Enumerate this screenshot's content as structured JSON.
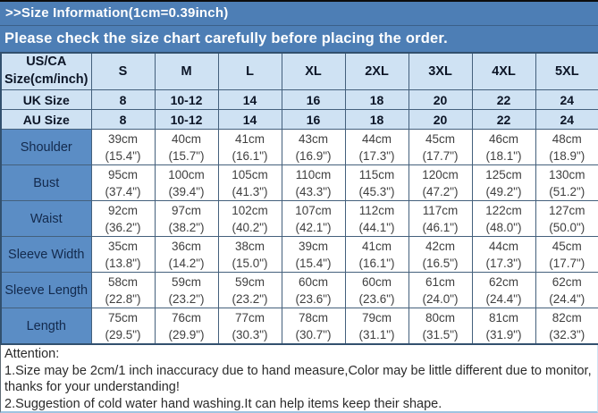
{
  "banner": {
    "title": ">>Size Information(1cm=0.39inch)",
    "subtitle": "Please check the size chart carefully before placing the order."
  },
  "colors": {
    "banner_bg": "#4d7eb5",
    "light_cell_bg": "#cfe2f3",
    "label_cell_bg": "#5b8dc5",
    "grid_border": "#44607c",
    "header_text": "#0c1526",
    "value_text": "#3f3f3f"
  },
  "chart_data": {
    "type": "table",
    "title": "Size Information(1cm=0.39inch)",
    "corner_header_lines": [
      "US/CA",
      "Size(cm/inch)"
    ],
    "sizes": [
      "S",
      "M",
      "L",
      "XL",
      "2XL",
      "3XL",
      "4XL",
      "5XL"
    ],
    "size_rows": [
      {
        "label": "UK Size",
        "values": [
          "8",
          "10-12",
          "14",
          "16",
          "18",
          "20",
          "22",
          "24"
        ]
      },
      {
        "label": "AU Size",
        "values": [
          "8",
          "10-12",
          "14",
          "16",
          "18",
          "20",
          "22",
          "24"
        ]
      }
    ],
    "measurement_rows": [
      {
        "label": "Shoulder",
        "cm": [
          "39cm",
          "40cm",
          "41cm",
          "43cm",
          "44cm",
          "45cm",
          "46cm",
          "48cm"
        ],
        "inch": [
          "(15.4\")",
          "(15.7\")",
          "(16.1\")",
          "(16.9\")",
          "(17.3\")",
          "(17.7\")",
          "(18.1\")",
          "(18.9\")"
        ]
      },
      {
        "label": "Bust",
        "cm": [
          "95cm",
          "100cm",
          "105cm",
          "110cm",
          "115cm",
          "120cm",
          "125cm",
          "130cm"
        ],
        "inch": [
          "(37.4\")",
          "(39.4\")",
          "(41.3\")",
          "(43.3\")",
          "(45.3\")",
          "(47.2\")",
          "(49.2\")",
          "(51.2\")"
        ]
      },
      {
        "label": "Waist",
        "cm": [
          "92cm",
          "97cm",
          "102cm",
          "107cm",
          "112cm",
          "117cm",
          "122cm",
          "127cm"
        ],
        "inch": [
          "(36.2\")",
          "(38.2\")",
          "(40.2\")",
          "(42.1\")",
          "(44.1\")",
          "(46.1\")",
          "(48.0\")",
          "(50.0\")"
        ]
      },
      {
        "label": "Sleeve Width",
        "cm": [
          "35cm",
          "36cm",
          "38cm",
          "39cm",
          "41cm",
          "42cm",
          "44cm",
          "45cm"
        ],
        "inch": [
          "(13.8\")",
          "(14.2\")",
          "(15.0\")",
          "(15.4\")",
          "(16.1\")",
          "(16.5\")",
          "(17.3\")",
          "(17.7\")"
        ]
      },
      {
        "label": "Sleeve Length",
        "cm": [
          "58cm",
          "59cm",
          "59cm",
          "60cm",
          "60cm",
          "61cm",
          "62cm",
          "62cm"
        ],
        "inch": [
          "(22.8\")",
          "(23.2\")",
          "(23.2\")",
          "(23.6\")",
          "(23.6\")",
          "(24.0\")",
          "(24.4\")",
          "(24.4\")"
        ]
      },
      {
        "label": "Length",
        "cm": [
          "75cm",
          "76cm",
          "77cm",
          "78cm",
          "79cm",
          "80cm",
          "81cm",
          "82cm"
        ],
        "inch": [
          "(29.5\")",
          "(29.9\")",
          "(30.3\")",
          "(30.7\")",
          "(31.1\")",
          "(31.5\")",
          "(31.9\")",
          "(32.3\")"
        ]
      }
    ]
  },
  "attention": {
    "title": "Attention:",
    "notes": [
      "1.Size may be 2cm/1 inch inaccuracy due to hand measure,Color may be little different due to monitor,thanks for your understanding!",
      "2.Suggestion of cold water hand washing.It can help items keep their shape."
    ]
  }
}
